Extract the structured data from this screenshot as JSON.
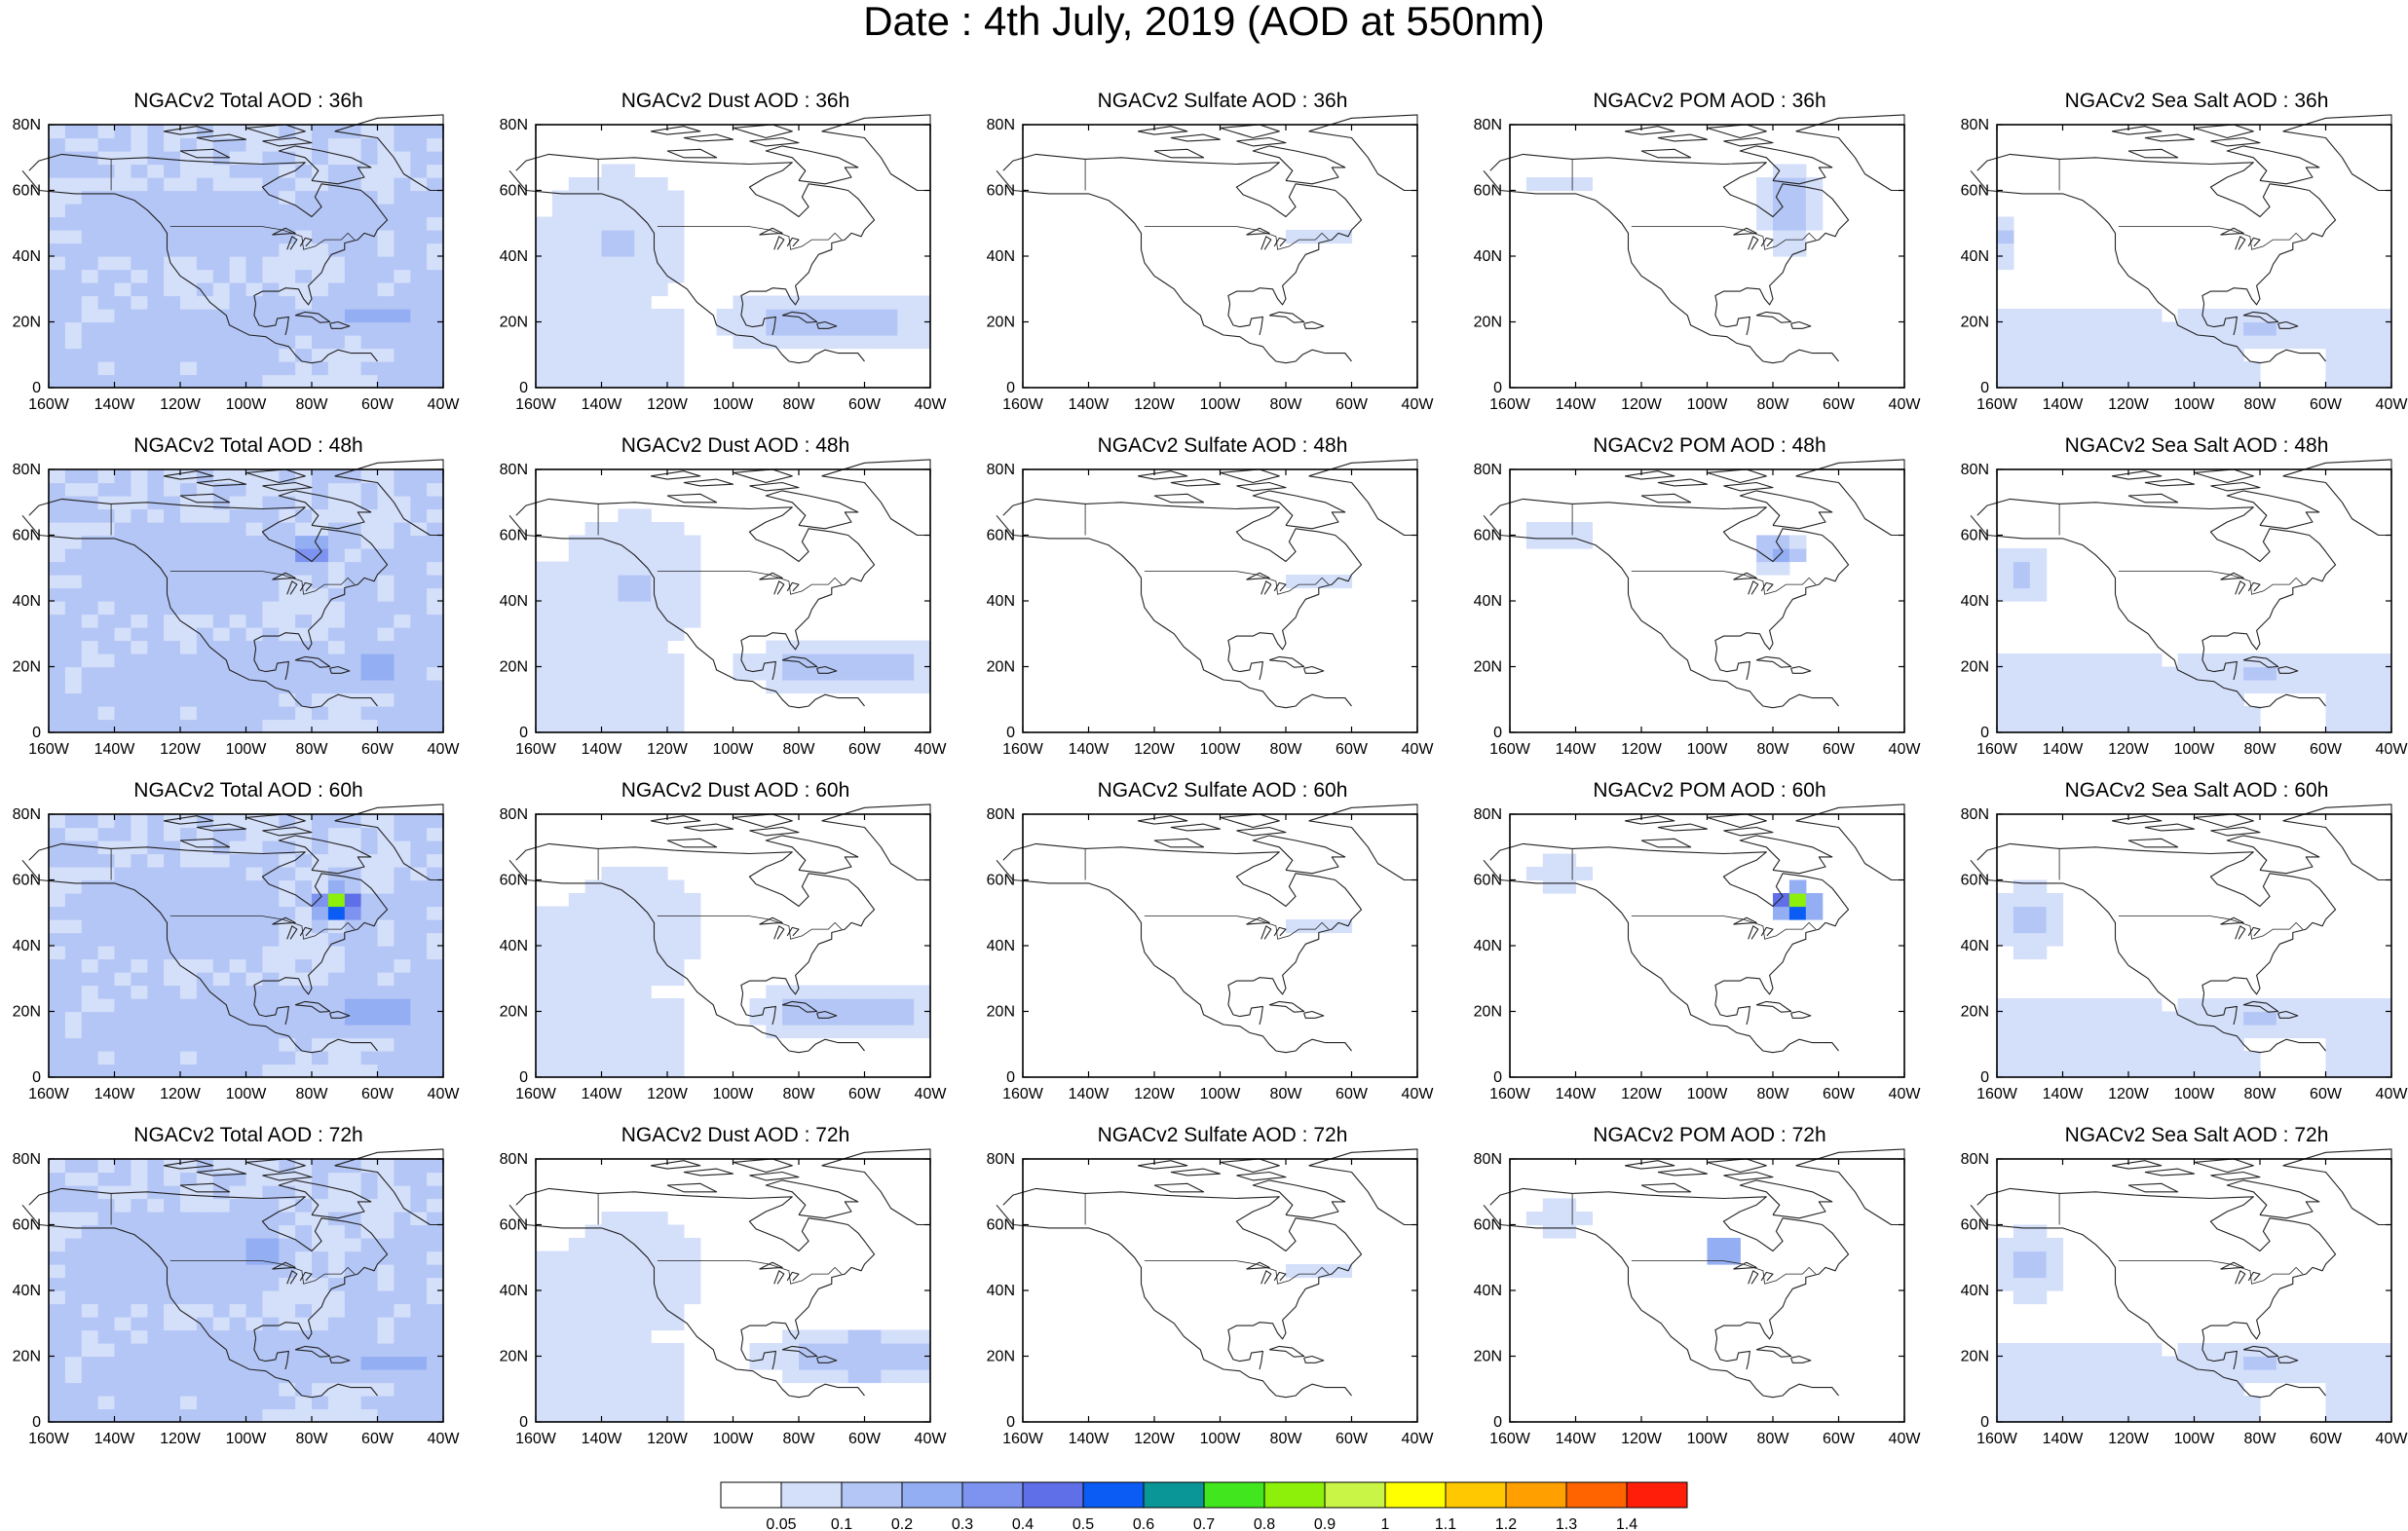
{
  "page": {
    "title": "Date : 4th July, 2019 (AOD at 550nm)"
  },
  "axes": {
    "x_ticks": [
      "160W",
      "140W",
      "120W",
      "100W",
      "80W",
      "60W",
      "40W"
    ],
    "y_ticks": [
      "0",
      "20N",
      "40N",
      "60N",
      "80N"
    ],
    "x_range_deg": [
      -160,
      -40
    ],
    "y_range_deg": [
      0,
      80
    ]
  },
  "colorbar": {
    "labels": [
      "0.05",
      "0.1",
      "0.2",
      "0.3",
      "0.4",
      "0.5",
      "0.6",
      "0.7",
      "0.8",
      "0.9",
      "1",
      "1.1",
      "1.2",
      "1.3",
      "1.4"
    ],
    "colors": [
      "#ffffff",
      "#d4dffa",
      "#b4c6f6",
      "#94aef3",
      "#7d93ef",
      "#5f6fe8",
      "#0a5cf5",
      "#0a9696",
      "#42e61e",
      "#8cf00a",
      "#c8f546",
      "#ffff00",
      "#ffc800",
      "#ffa000",
      "#ff6400",
      "#ff1e0a"
    ]
  },
  "chart_data": [
    {
      "type": "heatmap",
      "title": "NGACv2 Total AOD : 36h",
      "field": "total",
      "hour": 36,
      "plumes": [
        [
          -95,
          20,
          60,
          10,
          0.13
        ],
        [
          -115,
          50,
          60,
          20,
          0.12
        ],
        [
          -70,
          55,
          10,
          15,
          0.17
        ],
        [
          -60,
          22,
          25,
          8,
          0.22
        ]
      ]
    },
    {
      "type": "heatmap",
      "title": "NGACv2 Dust AOD : 36h",
      "field": "dust",
      "hour": 36,
      "plumes": [
        [
          -70,
          20,
          35,
          8,
          0.15
        ],
        [
          -135,
          45,
          25,
          25,
          0.09
        ]
      ]
    },
    {
      "type": "heatmap",
      "title": "NGACv2 Sulfate AOD : 36h",
      "field": "sulfate",
      "hour": 36,
      "plumes": []
    },
    {
      "type": "heatmap",
      "title": "NGACv2 POM AOD : 36h",
      "field": "pom",
      "hour": 36,
      "plumes": [
        [
          -75,
          55,
          10,
          15,
          0.14
        ],
        [
          -145,
          62,
          12,
          5,
          0.1
        ]
      ]
    },
    {
      "type": "heatmap",
      "title": "NGACv2 Sea Salt AOD : 36h",
      "field": "seasalt",
      "hour": 36,
      "plumes": [
        [
          -80,
          18,
          50,
          6,
          0.09
        ],
        [
          -157,
          45,
          4,
          8,
          0.1
        ]
      ]
    },
    {
      "type": "heatmap",
      "title": "NGACv2 Total AOD : 48h",
      "field": "total",
      "hour": 48,
      "plumes": [
        [
          -95,
          20,
          60,
          10,
          0.14
        ],
        [
          -120,
          50,
          60,
          25,
          0.12
        ],
        [
          -80,
          55,
          8,
          6,
          0.35
        ],
        [
          -60,
          20,
          20,
          8,
          0.22
        ]
      ]
    },
    {
      "type": "heatmap",
      "title": "NGACv2 Dust AOD : 48h",
      "field": "dust",
      "hour": 48,
      "plumes": [
        [
          -65,
          20,
          30,
          8,
          0.16
        ],
        [
          -130,
          45,
          25,
          25,
          0.09
        ]
      ]
    },
    {
      "type": "heatmap",
      "title": "NGACv2 Sulfate AOD : 48h",
      "field": "sulfate",
      "hour": 48,
      "plumes": []
    },
    {
      "type": "heatmap",
      "title": "NGACv2 POM AOD : 48h",
      "field": "pom",
      "hour": 48,
      "plumes": [
        [
          -78,
          55,
          8,
          5,
          0.26
        ],
        [
          -145,
          60,
          12,
          6,
          0.1
        ]
      ]
    },
    {
      "type": "heatmap",
      "title": "NGACv2 Sea Salt AOD : 48h",
      "field": "seasalt",
      "hour": 48,
      "plumes": [
        [
          -80,
          18,
          50,
          6,
          0.09
        ],
        [
          -152,
          48,
          8,
          10,
          0.11
        ]
      ]
    },
    {
      "type": "heatmap",
      "title": "NGACv2 Total AOD : 60h",
      "field": "total",
      "hour": 60,
      "plumes": [
        [
          -95,
          20,
          60,
          10,
          0.14
        ],
        [
          -120,
          50,
          60,
          25,
          0.12
        ],
        [
          -72,
          53,
          6,
          5,
          0.9
        ],
        [
          -60,
          20,
          25,
          8,
          0.22
        ]
      ]
    },
    {
      "type": "heatmap",
      "title": "NGACv2 Dust AOD : 60h",
      "field": "dust",
      "hour": 60,
      "plumes": [
        [
          -65,
          20,
          30,
          8,
          0.15
        ],
        [
          -130,
          45,
          25,
          25,
          0.08
        ]
      ]
    },
    {
      "type": "heatmap",
      "title": "NGACv2 Sulfate AOD : 60h",
      "field": "sulfate",
      "hour": 60,
      "plumes": []
    },
    {
      "type": "heatmap",
      "title": "NGACv2 POM AOD : 60h",
      "field": "pom",
      "hour": 60,
      "plumes": [
        [
          -73,
          53,
          6,
          5,
          0.85
        ],
        [
          -145,
          62,
          12,
          6,
          0.1
        ]
      ]
    },
    {
      "type": "heatmap",
      "title": "NGACv2 Sea Salt AOD : 60h",
      "field": "seasalt",
      "hour": 60,
      "plumes": [
        [
          -80,
          18,
          45,
          6,
          0.09
        ],
        [
          -150,
          48,
          10,
          12,
          0.12
        ]
      ]
    },
    {
      "type": "heatmap",
      "title": "NGACv2 Total AOD : 72h",
      "field": "total",
      "hour": 72,
      "plumes": [
        [
          -95,
          20,
          60,
          10,
          0.15
        ],
        [
          -120,
          50,
          60,
          25,
          0.13
        ],
        [
          -95,
          52,
          6,
          4,
          0.45
        ],
        [
          -55,
          18,
          20,
          8,
          0.25
        ]
      ]
    },
    {
      "type": "heatmap",
      "title": "NGACv2 Dust AOD : 72h",
      "field": "dust",
      "hour": 72,
      "plumes": [
        [
          -60,
          20,
          30,
          8,
          0.18
        ],
        [
          -130,
          45,
          25,
          25,
          0.08
        ]
      ]
    },
    {
      "type": "heatmap",
      "title": "NGACv2 Sulfate AOD : 72h",
      "field": "sulfate",
      "hour": 72,
      "plumes": []
    },
    {
      "type": "heatmap",
      "title": "NGACv2 POM AOD : 72h",
      "field": "pom",
      "hour": 72,
      "plumes": [
        [
          -95,
          52,
          6,
          4,
          0.4
        ],
        [
          -145,
          62,
          12,
          6,
          0.1
        ]
      ]
    },
    {
      "type": "heatmap",
      "title": "NGACv2 Sea Salt  AOD : 72h",
      "field": "seasalt",
      "hour": 72,
      "plumes": [
        [
          -80,
          18,
          50,
          6,
          0.09
        ],
        [
          -150,
          48,
          10,
          12,
          0.12
        ]
      ]
    }
  ]
}
